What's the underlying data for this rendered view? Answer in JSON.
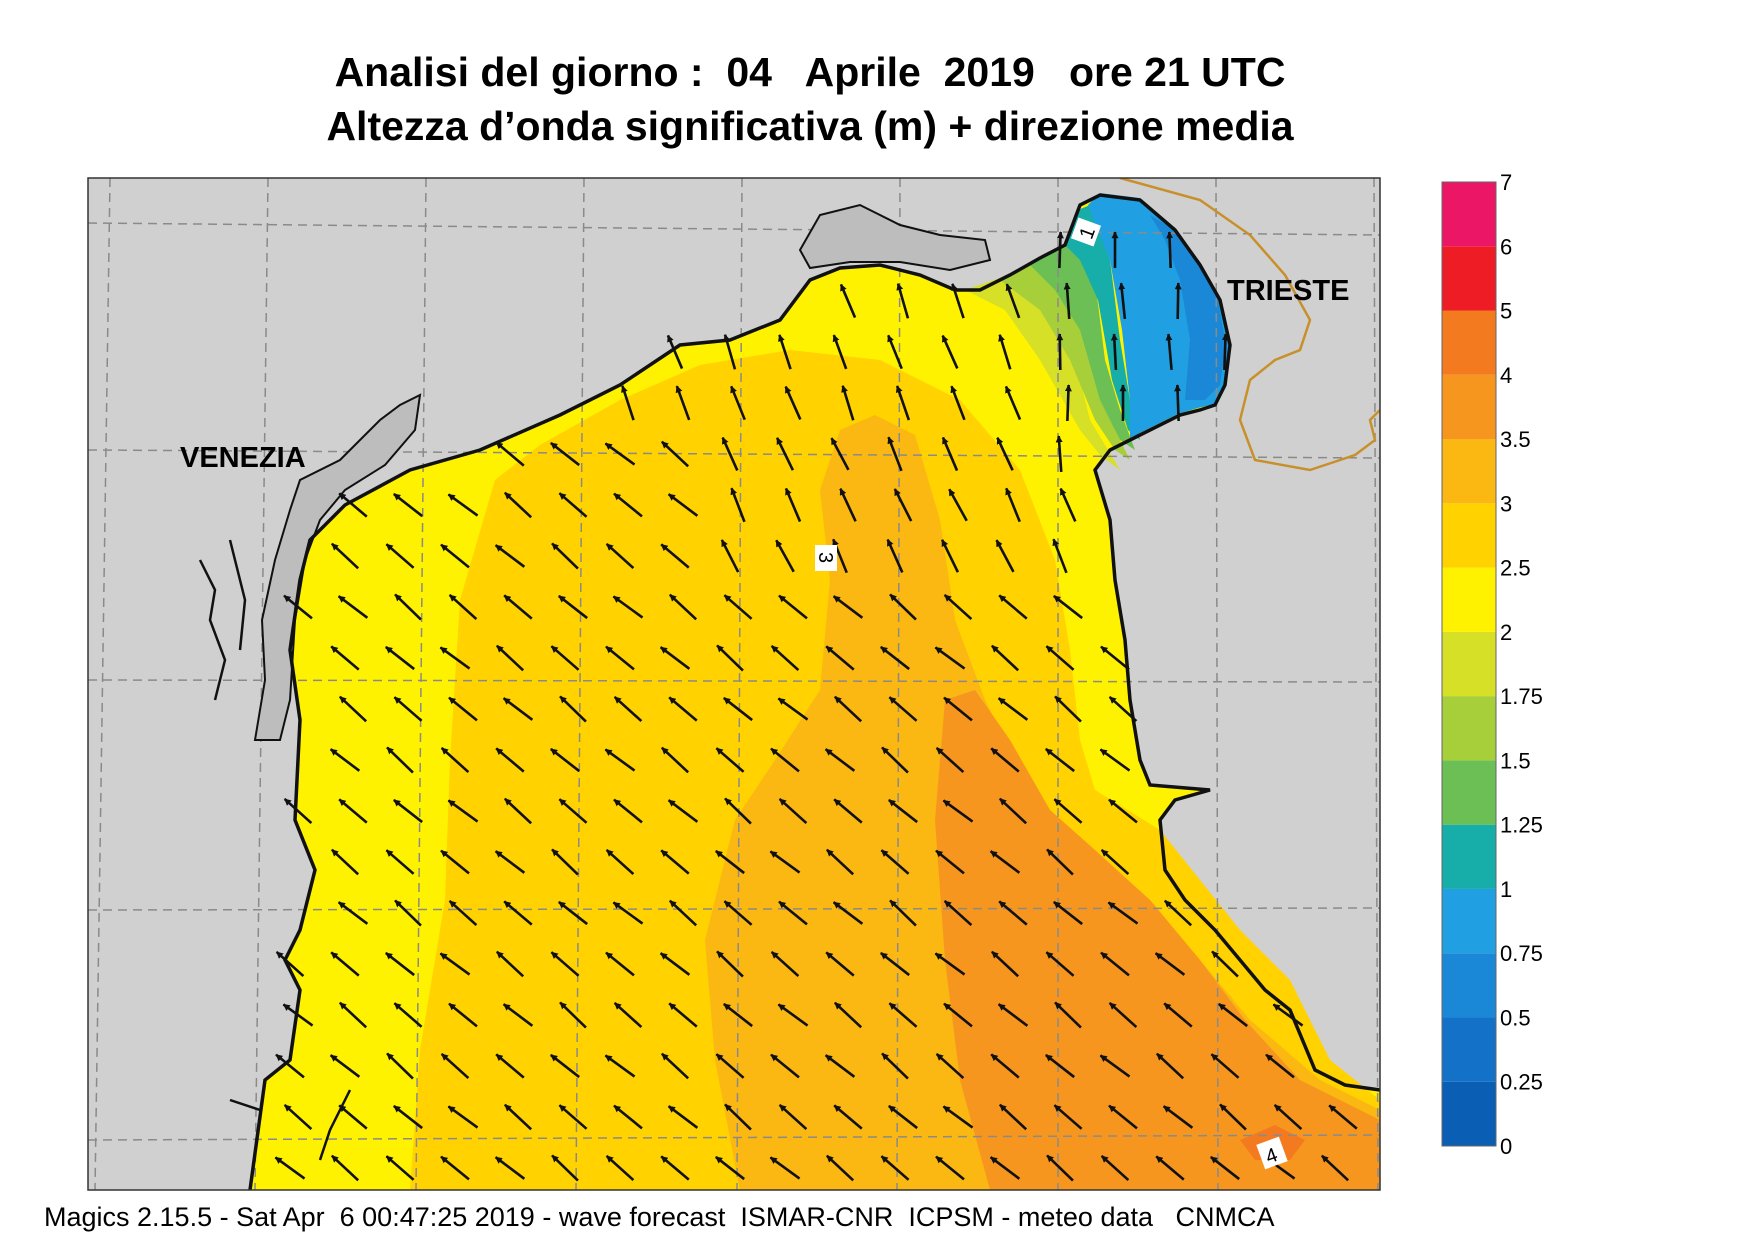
{
  "title": {
    "line1": "Analisi del giorno :  04   Aprile  2019   ore 21 UTC",
    "line2": "Altezza d’onda significativa (m) + direzione media"
  },
  "map": {
    "region": "Northern Adriatic Sea",
    "places": [
      {
        "name": "VENEZIA"
      },
      {
        "name": "TRIESTE"
      }
    ],
    "contour_labels": [
      "1",
      "3",
      "4"
    ],
    "direction_arrows": "uniform field, waves propagating toward NW; NNW near the north coast, N in Gulf of Trieste",
    "colors": {
      "land": "#d0d0d0",
      "coast": "#111111",
      "grid": "#8a8a8a",
      "border": "#c8902a"
    }
  },
  "legend": {
    "bands": [
      {
        "from": "0",
        "to": "0.25",
        "color": "#0a5fb4"
      },
      {
        "from": "0.25",
        "to": "0.5",
        "color": "#1372c8"
      },
      {
        "from": "0.5",
        "to": "0.75",
        "color": "#1a88d6"
      },
      {
        "from": "0.75",
        "to": "1",
        "color": "#20a0e2"
      },
      {
        "from": "1",
        "to": "1.25",
        "color": "#17ada8"
      },
      {
        "from": "1.25",
        "to": "1.5",
        "color": "#6cbf55"
      },
      {
        "from": "1.5",
        "to": "1.75",
        "color": "#a6cf3a"
      },
      {
        "from": "1.75",
        "to": "2",
        "color": "#d6e027"
      },
      {
        "from": "2",
        "to": "2.5",
        "color": "#fff200"
      },
      {
        "from": "2.5",
        "to": "3",
        "color": "#ffd200"
      },
      {
        "from": "3",
        "to": "3.5",
        "color": "#fbb712"
      },
      {
        "from": "3.5",
        "to": "4",
        "color": "#f7961f"
      },
      {
        "from": "4",
        "to": "5",
        "color": "#f47a20"
      },
      {
        "from": "5",
        "to": "6",
        "color": "#ee1c25"
      },
      {
        "from": "6",
        "to": "7",
        "color": "#ec1666"
      }
    ],
    "tick_labels": [
      "0",
      "0.25",
      "0.5",
      "0.75",
      "1",
      "1.25",
      "1.5",
      "1.75",
      "2",
      "2.5",
      "3",
      "3.5",
      "4",
      "5",
      "6",
      "7"
    ]
  },
  "footer": "Magics 2.15.5 - Sat Apr  6 00:47:25 2019 - wave forecast  ISMAR-CNR  ICPSM - meteo data   CNMCA"
}
